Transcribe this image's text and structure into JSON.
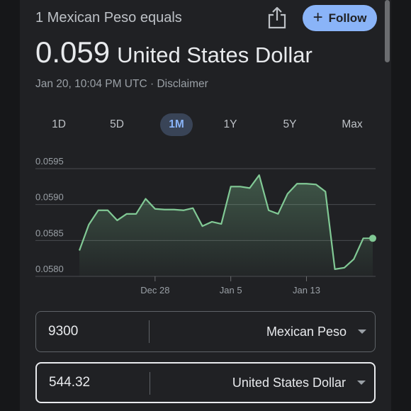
{
  "header": {
    "lead": "1 Mexican Peso equals",
    "follow_label": "Follow",
    "rate": "0.059",
    "target_currency": "United States Dollar",
    "timestamp": "Jan 20, 10:04 PM UTC",
    "separator": " · ",
    "disclaimer": "Disclaimer"
  },
  "ranges": [
    "1D",
    "5D",
    "1M",
    "1Y",
    "5Y",
    "Max"
  ],
  "active_range": "1M",
  "icons": {
    "share": "share-icon",
    "follow": "plus-icon",
    "dropdown": "caret-down-icon"
  },
  "colors": {
    "line": "#81c995",
    "accent": "#8ab4f8",
    "background": "#202124"
  },
  "chart_data": {
    "type": "area",
    "y_ticks": [
      "0.0595",
      "0.0590",
      "0.0585",
      "0.0580"
    ],
    "ylim": [
      0.058,
      0.0595
    ],
    "x_ticks": [
      "Dec 28",
      "Jan 5",
      "Jan 13"
    ],
    "values": [
      0.05836,
      0.05872,
      0.05892,
      0.05892,
      0.05878,
      0.05887,
      0.05887,
      0.05908,
      0.05894,
      0.05893,
      0.05893,
      0.05892,
      0.05895,
      0.0587,
      0.05876,
      0.05873,
      0.05925,
      0.05925,
      0.05923,
      0.05941,
      0.05892,
      0.05887,
      0.05915,
      0.05929,
      0.05929,
      0.05928,
      0.05918,
      0.0581,
      0.05812,
      0.05824,
      0.05853,
      0.05853
    ],
    "x_tick_index": [
      8,
      16,
      24
    ]
  },
  "converter": {
    "from": {
      "amount": "9300",
      "currency": "Mexican Peso"
    },
    "to": {
      "amount": "544.32",
      "currency": "United States Dollar"
    }
  }
}
